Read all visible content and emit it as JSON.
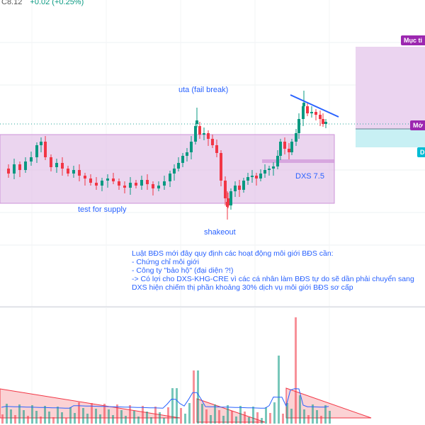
{
  "header": {
    "price": "C8.12",
    "change": "+0.02 (+0.25%)"
  },
  "annotations": {
    "uta": "uta (fail break)",
    "test_supply": "test for supply",
    "shakeout": "shakeout",
    "dxs_level": "DXS 7.5"
  },
  "note": {
    "lines": [
      "Luật BĐS mới đây quy định các hoạt động môi giới BĐS cần:",
      "- Chứng chỉ môi giới",
      "- Công ty \"bảo hộ\" (đại diện ?!)",
      "-> Có lợi cho DXS-KHG-CRE vì các cá nhân làm BĐS tự do sẽ dần phải chuyển sang",
      "DXS hiện chiếm thị phần khoảng 30% dịch vụ môi giới BĐS sơ cấp"
    ]
  },
  "right_badges": {
    "target": "Mục ti",
    "entry": "Mở",
    "stop": "D"
  },
  "colors": {
    "up": "#089981",
    "down": "#f23645",
    "zone": "#e1bee7",
    "zone_border": "#ce93d8",
    "text_blue": "#2962ff",
    "trendline": "#2962ff",
    "target_zone": "#ebd4f0",
    "stop_zone": "#c8f0f4",
    "badge_purple": "#9c27b0",
    "badge_cyan": "#00bcd4",
    "volume_pattern": "#f8b4b8"
  }
}
